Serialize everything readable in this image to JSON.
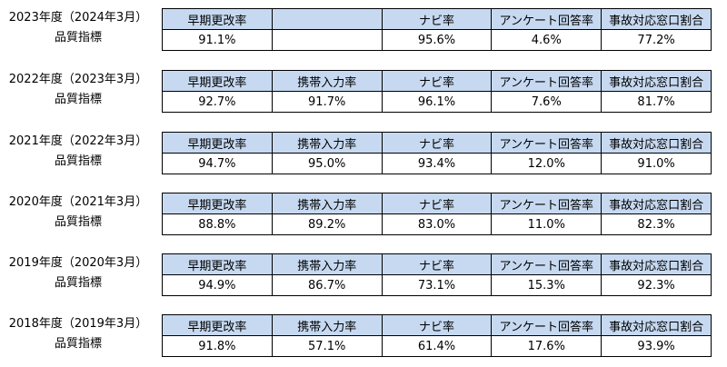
{
  "row_label": "品質指標",
  "years": [
    {
      "year_label": "2023年度（2024年3月）",
      "headers": [
        "早期更改率",
        "",
        "ナビ率",
        "アンケート回答率",
        "事故対応窓口割合"
      ],
      "values": [
        "91.1%",
        "",
        "95.6%",
        "4.6%",
        "77.2%"
      ]
    },
    {
      "year_label": "2022年度（2023年3月）",
      "headers": [
        "早期更改率",
        "携帯入力率",
        "ナビ率",
        "アンケート回答率",
        "事故対応窓口割合"
      ],
      "values": [
        "92.7%",
        "91.7%",
        "96.1%",
        "7.6%",
        "81.7%"
      ]
    },
    {
      "year_label": "2021年度（2022年3月）",
      "headers": [
        "早期更改率",
        "携帯入力率",
        "ナビ率",
        "アンケート回答率",
        "事故対応窓口割合"
      ],
      "values": [
        "94.7%",
        "95.0%",
        "93.4%",
        "12.0%",
        "91.0%"
      ]
    },
    {
      "year_label": "2020年度（2021年3月）",
      "headers": [
        "早期更改率",
        "携帯入力率",
        "ナビ率",
        "アンケート回答率",
        "事故対応窓口割合"
      ],
      "values": [
        "88.8%",
        "89.2%",
        "83.0%",
        "11.0%",
        "82.3%"
      ]
    },
    {
      "year_label": "2019年度（2020年3月）",
      "headers": [
        "早期更改率",
        "携帯入力率",
        "ナビ率",
        "アンケート回答率",
        "事故対応窓口割合"
      ],
      "values": [
        "94.9%",
        "86.7%",
        "73.1%",
        "15.3%",
        "92.3%"
      ]
    },
    {
      "year_label": "2018年度（2019年3月）",
      "headers": [
        "早期更改率",
        "携帯入力率",
        "ナビ率",
        "アンケート回答率",
        "事故対応窓口割合"
      ],
      "values": [
        "91.8%",
        "57.1%",
        "61.4%",
        "17.6%",
        "93.9%"
      ]
    }
  ]
}
